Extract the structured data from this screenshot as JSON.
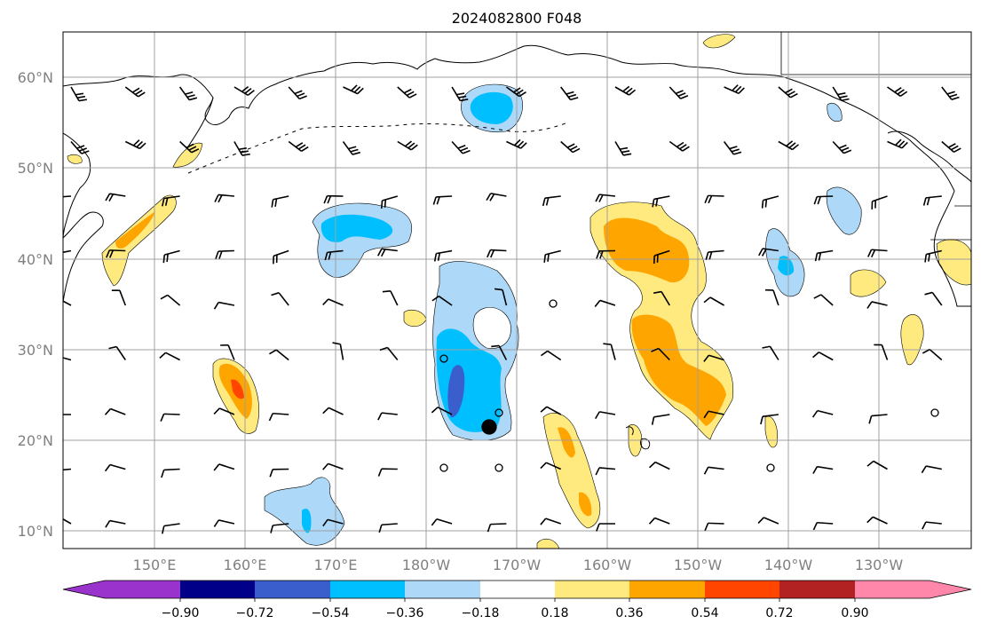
{
  "title": "2024082800 F048",
  "axes": {
    "lon_labels": [
      "150°E",
      "160°E",
      "170°E",
      "180°W",
      "170°W",
      "160°W",
      "150°W",
      "140°W",
      "130°W"
    ],
    "lat_labels": [
      "60°N",
      "50°N",
      "40°N",
      "30°N",
      "20°N",
      "10°N"
    ],
    "lon_range": [
      140,
      240
    ],
    "lat_range": [
      8,
      65
    ],
    "grid": true
  },
  "colorbar": {
    "ticks": [
      "−0.90",
      "−0.72",
      "−0.54",
      "−0.36",
      "−0.18",
      "0.18",
      "0.36",
      "0.54",
      "0.72",
      "0.90"
    ],
    "colors": [
      "#9933cc",
      "#000088",
      "#3a5fcd",
      "#00bfff",
      "#add8f7",
      "#ffffff",
      "#ffea80",
      "#ffa500",
      "#ff4500",
      "#b22222",
      "#ff88aa"
    ],
    "extend": "both"
  },
  "colors": {
    "coastline": "#000000",
    "grid": "#a0a0a0",
    "tick_label": "#808080"
  }
}
